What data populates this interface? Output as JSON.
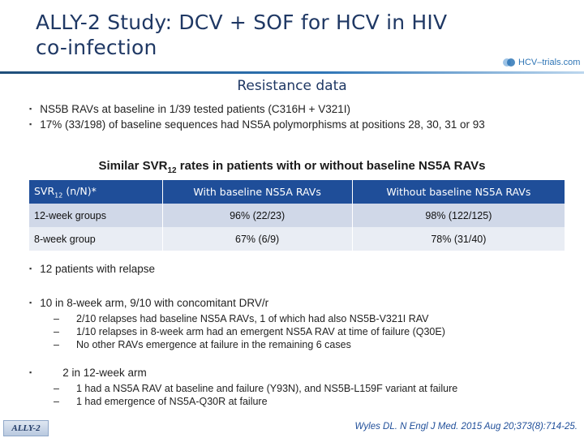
{
  "header": {
    "title_line1": "ALLY-2 Study: DCV + SOF for HCV in HIV",
    "title_line2": "co-infection",
    "logo_text": "HCV–trials.com"
  },
  "section_title": "Resistance data",
  "top_bullets": [
    "NS5B RAVs at baseline in 1/39 tested patients (C316H + V321I)",
    "17% (33/198) of baseline sequences had NS5A polymorphisms at positions 28, 30, 31 or 93"
  ],
  "table_heading": {
    "before": "Similar SVR",
    "sub": "12",
    "after": " rates in patients with or without baseline NS5A RAVs"
  },
  "table": {
    "header": {
      "col1_main": "SVR",
      "col1_sub": "12",
      "col1_tail": " (n/N)*",
      "col2": "With baseline NS5A RAVs",
      "col3": "Without baseline NS5A RAVs"
    },
    "rows": [
      {
        "group": "12-week groups",
        "with": "96%  (22/23)",
        "without": "98%  (122/125)"
      },
      {
        "group": "8-week group",
        "with": "67%  (6/9)",
        "without": "78%  (31/40)"
      }
    ]
  },
  "relapse_bullet": "12 patients with relapse",
  "arm8": {
    "text": "10 in 8-week arm, 9/10 with concomitant DRV/r",
    "items": [
      "2/10 relapses had baseline NS5A RAVs, 1 of which had also NS5B-V321I RAV",
      "1/10 relapses in 8-week arm had an emergent NS5A RAV at time of failure (Q30E)",
      "No other RAVs emergence at failure in the remaining 6 cases"
    ]
  },
  "arm12": {
    "text": "2 in 12-week arm",
    "items": [
      "1 had a NS5A RAV at baseline and failure (Y93N), and NS5B-L159F variant at failure",
      "1 had emergence of NS5A-Q30R at failure"
    ]
  },
  "bullet_glyph": "▪",
  "dash_glyph": "–",
  "footer": {
    "logo_text": "ALLY-2",
    "citation": "Wyles DL. N Engl J Med. 2015 Aug 20;373(8):714-25."
  },
  "colors": {
    "title": "#1f3864",
    "table_header": "#1f4e99",
    "row_dark": "#d0d8e8",
    "row_light": "#e9edf4"
  }
}
